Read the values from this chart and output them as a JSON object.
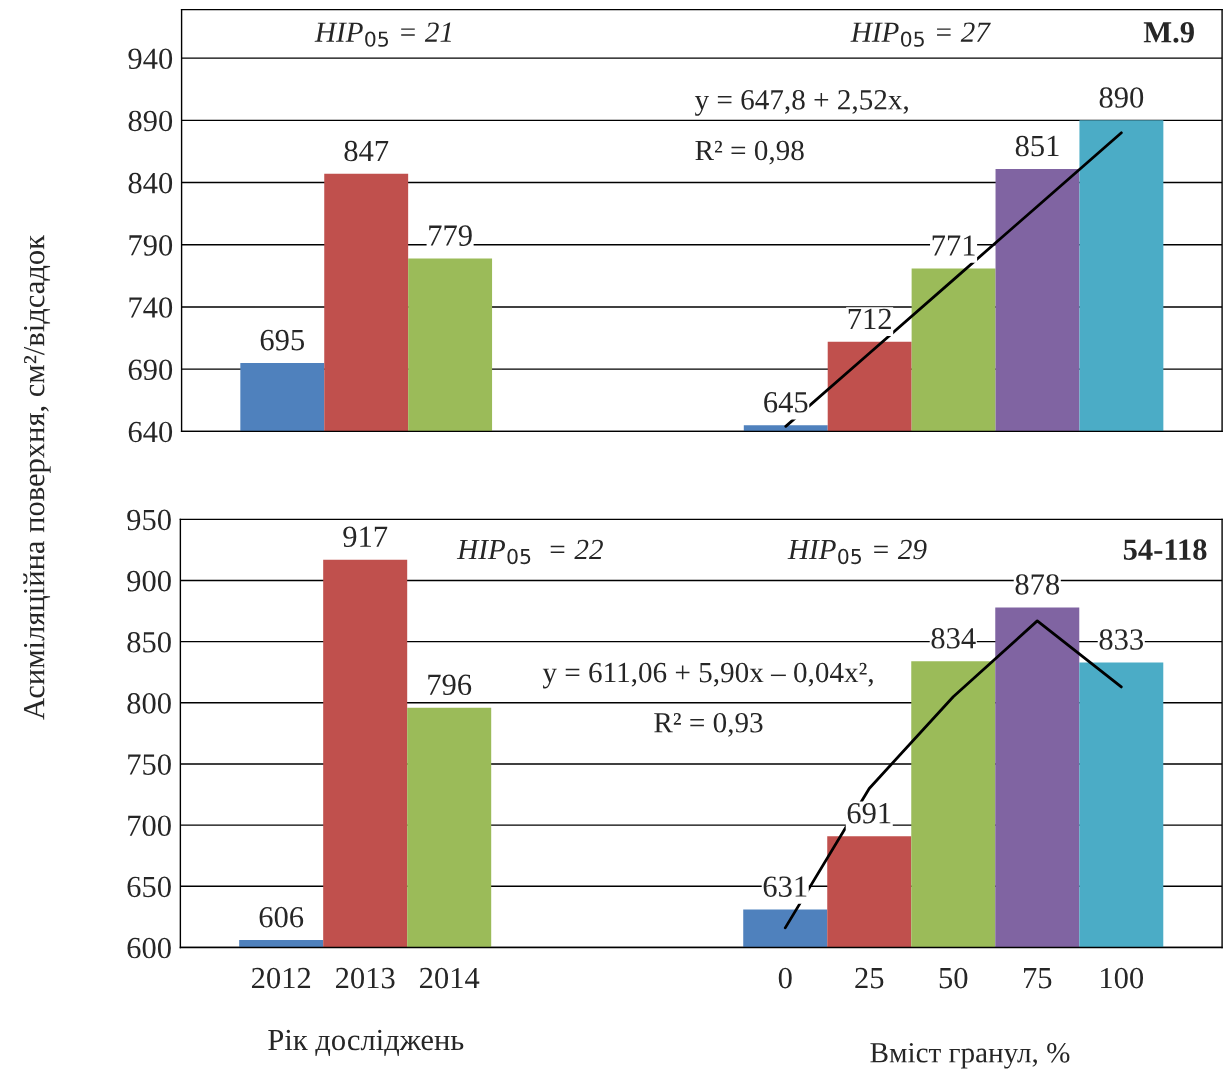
{
  "chart_data": [
    {
      "type": "bar",
      "title": "М.9",
      "ylabel": "Асиміляційна поверхня, см²/відсадок",
      "categories": [
        "2012",
        "2013",
        "2014",
        null,
        null,
        null,
        "0",
        "25",
        "50",
        "75",
        "100"
      ],
      "series": [
        {
          "colors": [
            "#4f81bd",
            "#c0504d",
            "#9bbb59",
            null,
            null,
            null,
            "#4f81bd",
            "#c0504d",
            "#9bbb59",
            "#8064a2",
            "#4bacc6"
          ],
          "values": [
            695,
            847,
            779,
            null,
            null,
            null,
            645,
            712,
            771,
            851,
            890
          ],
          "value_labels": [
            "695",
            "847",
            "779",
            null,
            null,
            null,
            "645",
            "712",
            "771",
            "851",
            "890"
          ]
        },
        {
          "type": "line",
          "color": "#000000",
          "values": [
            null,
            null,
            null,
            null,
            null,
            null,
            644,
            703,
            762,
            821,
            880
          ]
        }
      ],
      "ylim": [
        640,
        979
      ],
      "yticks": [
        640,
        690,
        740,
        790,
        840,
        890,
        940
      ],
      "grid": "y",
      "tick_labels": "y",
      "annotations": [
        "HIP$_{05}$ = 21",
        "HIP$_{05}$ = 27",
        "y = 647,8 + 2,52x,",
        "R² = 0,98"
      ]
    },
    {
      "type": "bar",
      "title": "54-118",
      "xlabel": "Рік досліджень",
      "categories": [
        "2012",
        "2013",
        "2014",
        null,
        null,
        null,
        "0",
        "25",
        "50",
        "75",
        "100"
      ],
      "series": [
        {
          "colors": [
            "#4f81bd",
            "#c0504d",
            "#9bbb59",
            null,
            null,
            null,
            "#4f81bd",
            "#c0504d",
            "#9bbb59",
            "#8064a2",
            "#4bacc6"
          ],
          "values": [
            606,
            917,
            796,
            null,
            null,
            null,
            631,
            691,
            834,
            878,
            833
          ],
          "value_labels": [
            "606",
            "917",
            "796",
            null,
            null,
            null,
            "631",
            "691",
            "834",
            "878",
            "833"
          ]
        },
        {
          "type": "line",
          "color": "#000000",
          "values": [
            null,
            null,
            null,
            null,
            null,
            null,
            616,
            730,
            805,
            867,
            813
          ]
        }
      ],
      "ylim": [
        600,
        950
      ],
      "yticks": [
        600,
        650,
        700,
        750,
        800,
        850,
        900,
        950
      ],
      "grid": "y",
      "annotations": [
        "HIP$_{05}$  = 22",
        "HIP$_{05}$ = 29",
        "y = 611,06 + 5,90x – 0,04x²,",
        "R² = 0,93",
        "Вміст гранул, %"
      ]
    }
  ]
}
